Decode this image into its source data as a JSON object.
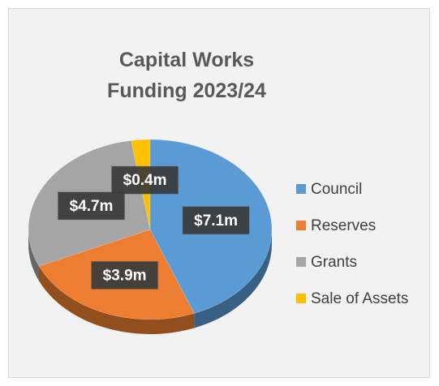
{
  "chart_data": {
    "type": "pie",
    "title": "Capital Works Funding 2023/24",
    "categories": [
      "Council",
      "Reserves",
      "Grants",
      "Sale of Assets"
    ],
    "values": [
      7.1,
      3.9,
      4.7,
      0.4
    ],
    "value_labels": [
      "$7.1m",
      "$3.9m",
      "$4.7m",
      "$0.4m"
    ],
    "colors": [
      "#5b9bd5",
      "#ed7d31",
      "#a5a5a5",
      "#ffc000"
    ],
    "legend": "right"
  }
}
